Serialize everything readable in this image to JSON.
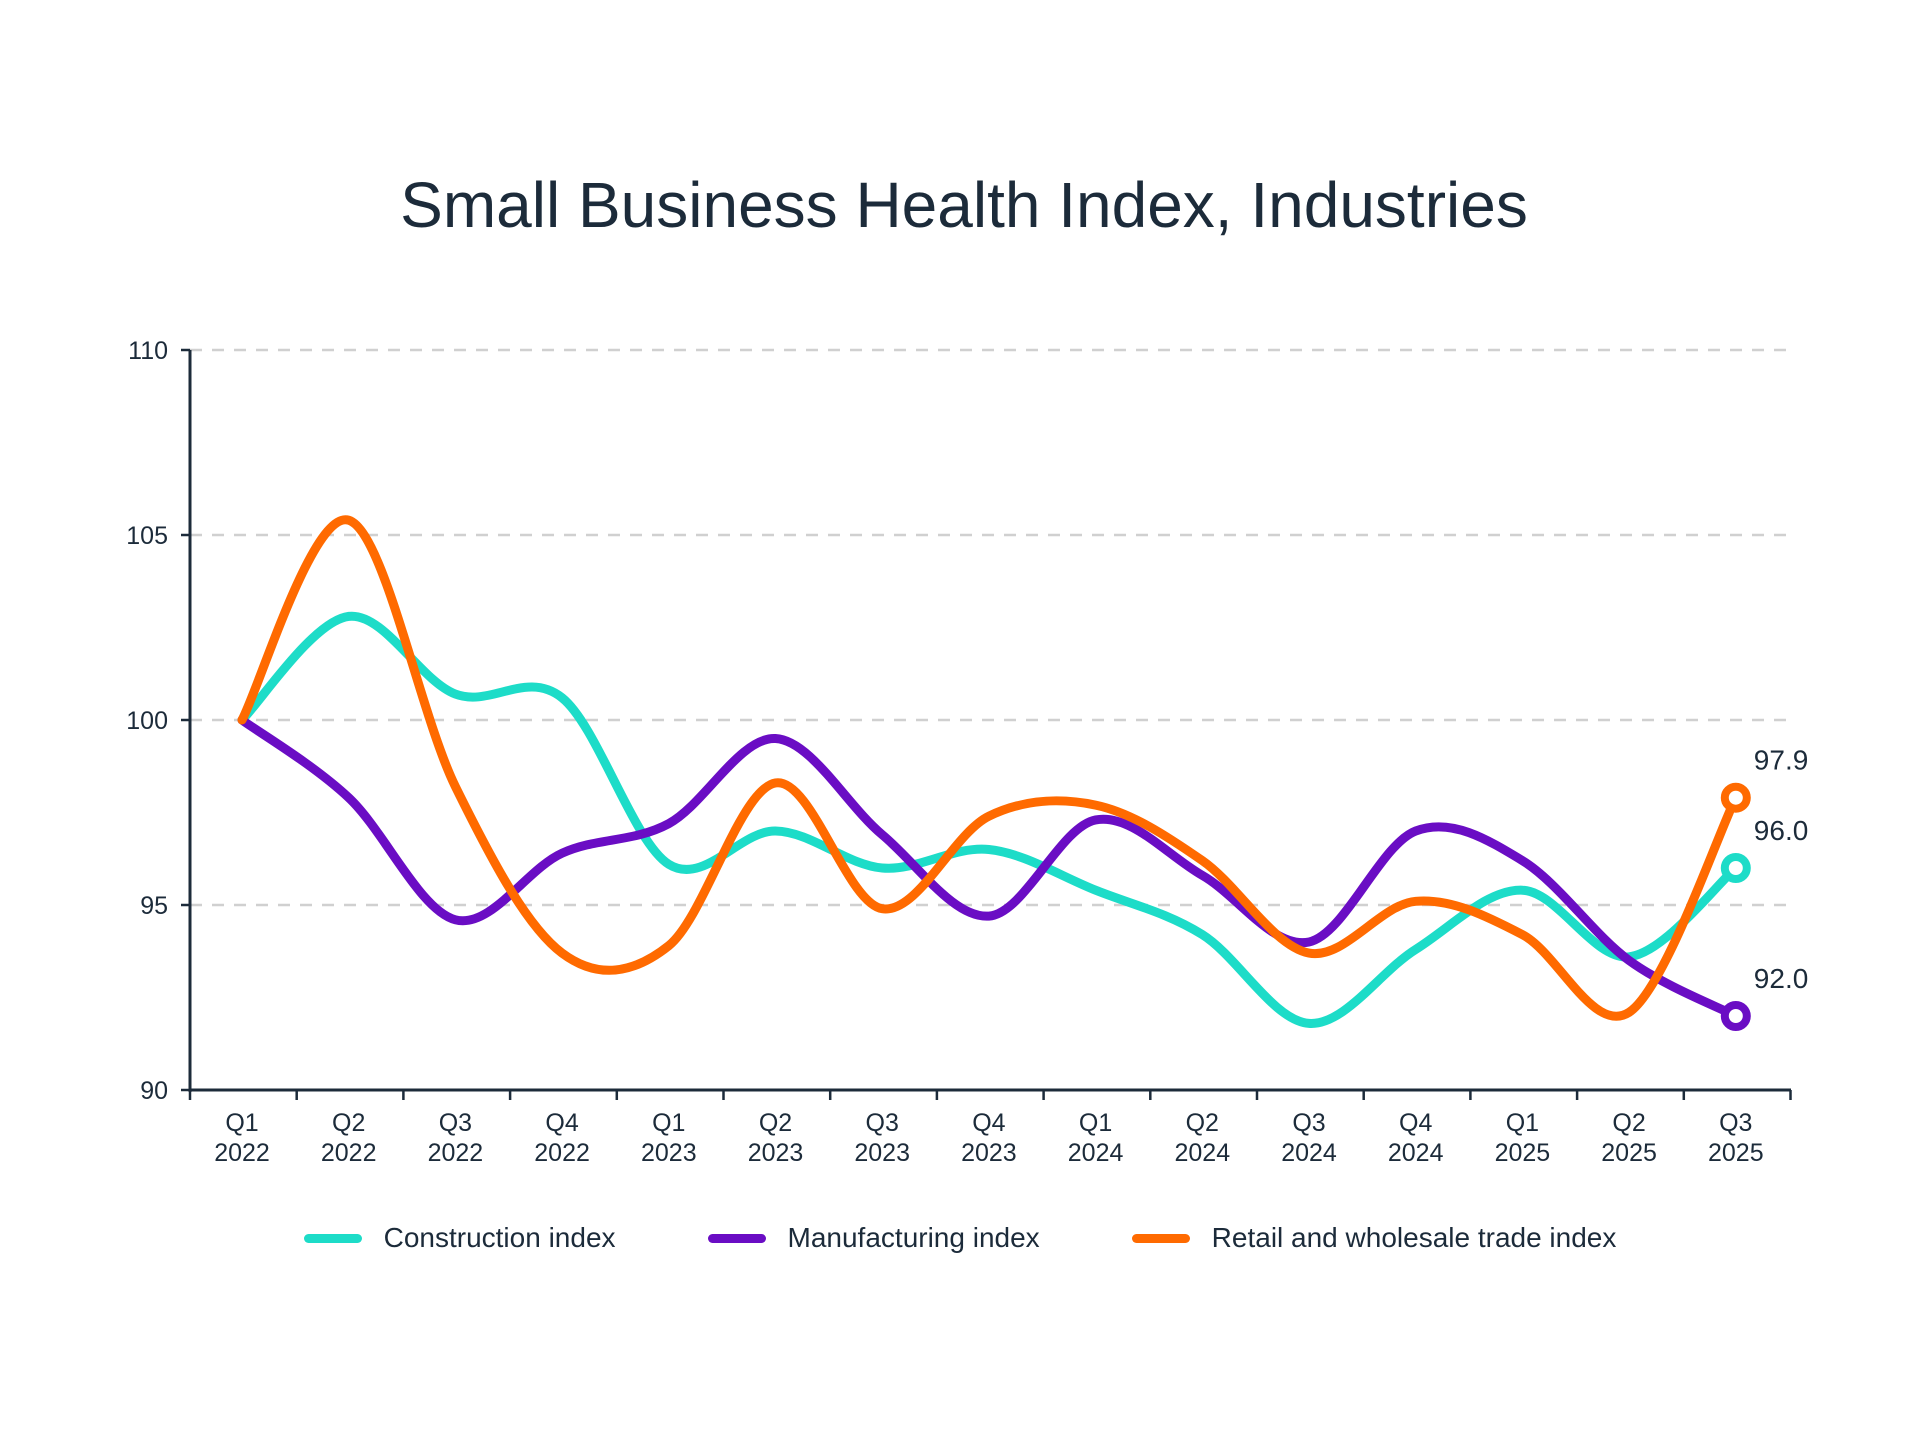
{
  "chart_data": {
    "type": "line",
    "title": "Small Business Health Index, Industries",
    "xlabel": "",
    "ylabel": "",
    "categories": [
      [
        "Q1",
        "2022"
      ],
      [
        "Q2",
        "2022"
      ],
      [
        "Q3",
        "2022"
      ],
      [
        "Q4",
        "2022"
      ],
      [
        "Q1",
        "2023"
      ],
      [
        "Q2",
        "2023"
      ],
      [
        "Q3",
        "2023"
      ],
      [
        "Q4",
        "2023"
      ],
      [
        "Q1",
        "2024"
      ],
      [
        "Q2",
        "2024"
      ],
      [
        "Q3",
        "2024"
      ],
      [
        "Q4",
        "2024"
      ],
      [
        "Q1",
        "2025"
      ],
      [
        "Q2",
        "2025"
      ],
      [
        "Q3",
        "2025"
      ]
    ],
    "ylim": [
      90,
      110
    ],
    "yticks": [
      90,
      95,
      100,
      105,
      110
    ],
    "grid": "horizontal dashed",
    "legend_position": "bottom",
    "series": [
      {
        "name": "Construction index",
        "color": "#1ddcc8",
        "values": [
          100,
          102.8,
          100.7,
          100.6,
          96.1,
          97.0,
          96.0,
          96.5,
          95.4,
          94.2,
          91.8,
          93.8,
          95.4,
          93.6,
          96.0
        ],
        "end_label": "96.0"
      },
      {
        "name": "Manufacturing index",
        "color": "#6a0dc4",
        "values": [
          100,
          97.9,
          94.6,
          96.4,
          97.2,
          99.5,
          96.9,
          94.7,
          97.3,
          95.8,
          94.0,
          97.0,
          96.2,
          93.5,
          92.0
        ],
        "end_label": "92.0"
      },
      {
        "name": "Retail and wholesale trade index",
        "color": "#ff6a00",
        "values": [
          100,
          105.4,
          98.2,
          93.7,
          93.9,
          98.3,
          94.9,
          97.4,
          97.7,
          96.2,
          93.7,
          95.1,
          94.2,
          92.1,
          97.9
        ],
        "end_label": "97.9"
      }
    ]
  }
}
